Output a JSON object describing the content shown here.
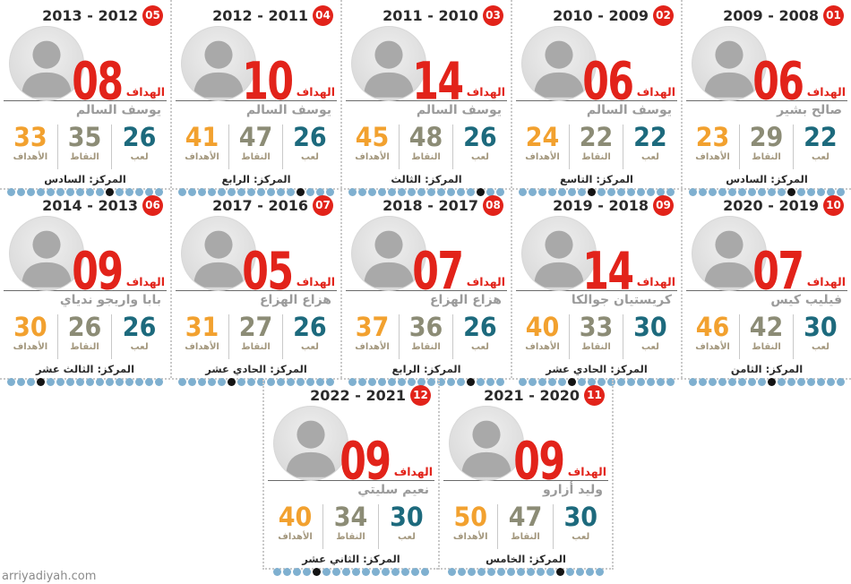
{
  "watermark": "arriyadiyah.com",
  "labels": {
    "top_scorer": "الهداف",
    "goals": "الأهداف",
    "points": "النقاط",
    "played": "لعب"
  },
  "dots_total": 16,
  "colors": {
    "red": "#e2231a",
    "orange": "#f2a12f",
    "olive": "#8c8c76",
    "teal": "#1d6a7d",
    "dot_blue": "#7fb0d0",
    "dot_black": "#141414"
  },
  "rows": [
    [
      {
        "badge": "05",
        "season": "2013 - 2012",
        "top_goals": "08",
        "player": "يوسف السالم",
        "goals": "33",
        "points": "35",
        "played": "26",
        "position": "المركز: السادس",
        "rank": 6
      },
      {
        "badge": "04",
        "season": "2012 - 2011",
        "top_goals": "10",
        "player": "يوسف السالم",
        "goals": "41",
        "points": "47",
        "played": "26",
        "position": "المركز: الرابع",
        "rank": 4
      },
      {
        "badge": "03",
        "season": "2011 - 2010",
        "top_goals": "14",
        "player": "يوسف السالم",
        "goals": "45",
        "points": "48",
        "played": "26",
        "position": "المركز: الثالث",
        "rank": 3
      },
      {
        "badge": "02",
        "season": "2010 - 2009",
        "top_goals": "06",
        "player": "يوسف السالم",
        "goals": "24",
        "points": "22",
        "played": "22",
        "position": "المركز: التاسع",
        "rank": 9
      },
      {
        "badge": "01",
        "season": "2009 - 2008",
        "top_goals": "06",
        "player": "صالح بشير",
        "goals": "23",
        "points": "29",
        "played": "22",
        "position": "المركز: السادس",
        "rank": 6
      }
    ],
    [
      {
        "badge": "06",
        "season": "2014 - 2013",
        "top_goals": "09",
        "player": "بابا واريجو ندياي",
        "goals": "30",
        "points": "26",
        "played": "26",
        "position": "المركز: الثالث عشر",
        "rank": 13
      },
      {
        "badge": "07",
        "season": "2017 - 2016",
        "top_goals": "05",
        "player": "هزاع الهزاع",
        "goals": "31",
        "points": "27",
        "played": "26",
        "position": "المركز: الحادي عشر",
        "rank": 11
      },
      {
        "badge": "08",
        "season": "2018 - 2017",
        "top_goals": "07",
        "player": "هزاع الهزاع",
        "goals": "37",
        "points": "36",
        "played": "26",
        "position": "المركز: الرابع",
        "rank": 4
      },
      {
        "badge": "09",
        "season": "2019 - 2018",
        "top_goals": "14",
        "player": "كريستيان جوالكا",
        "goals": "40",
        "points": "33",
        "played": "30",
        "position": "المركز: الحادي عشر",
        "rank": 11
      },
      {
        "badge": "10",
        "season": "2020 - 2019",
        "top_goals": "07",
        "player": "فيليب كيس",
        "goals": "46",
        "points": "42",
        "played": "30",
        "position": "المركز: الثامن",
        "rank": 8
      }
    ],
    [
      {
        "badge": "12",
        "season": "2022 - 2021",
        "top_goals": "09",
        "player": "نعيم سليتي",
        "goals": "40",
        "points": "34",
        "played": "30",
        "position": "المركز: الثاني عشر",
        "rank": 12
      },
      {
        "badge": "11",
        "season": "2021 - 2020",
        "top_goals": "09",
        "player": "وليد أزارو",
        "goals": "50",
        "points": "47",
        "played": "30",
        "position": "المركز: الخامس",
        "rank": 5
      }
    ]
  ],
  "chart_data": {
    "type": "table",
    "title": "",
    "columns": [
      "season",
      "card_number",
      "top_scorer",
      "scorer_goals",
      "team_goals",
      "points",
      "matches_played",
      "league_position"
    ],
    "rows": [
      [
        "2008-2009",
        1,
        "صالح بشير",
        6,
        23,
        29,
        22,
        6
      ],
      [
        "2009-2010",
        2,
        "يوسف السالم",
        6,
        24,
        22,
        22,
        9
      ],
      [
        "2010-2011",
        3,
        "يوسف السالم",
        14,
        45,
        48,
        26,
        3
      ],
      [
        "2011-2012",
        4,
        "يوسف السالم",
        10,
        41,
        47,
        26,
        4
      ],
      [
        "2012-2013",
        5,
        "يوسف السالم",
        8,
        33,
        35,
        26,
        6
      ],
      [
        "2013-2014",
        6,
        "بابا واريجو ندياي",
        9,
        30,
        26,
        26,
        13
      ],
      [
        "2016-2017",
        7,
        "هزاع الهزاع",
        5,
        31,
        27,
        26,
        11
      ],
      [
        "2017-2018",
        8,
        "هزاع الهزاع",
        7,
        37,
        36,
        26,
        4
      ],
      [
        "2018-2019",
        9,
        "كريستيان جوالكا",
        14,
        40,
        33,
        30,
        11
      ],
      [
        "2019-2020",
        10,
        "فيليب كيس",
        7,
        46,
        42,
        30,
        8
      ],
      [
        "2020-2021",
        11,
        "وليد أزارو",
        9,
        50,
        47,
        30,
        5
      ],
      [
        "2021-2022",
        12,
        "نعيم سليتي",
        9,
        40,
        34,
        30,
        12
      ]
    ]
  }
}
